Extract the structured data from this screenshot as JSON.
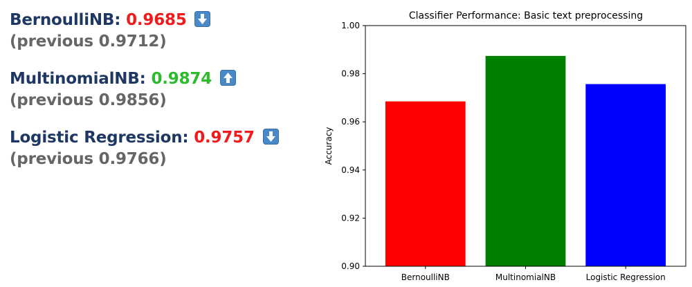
{
  "results": [
    {
      "name": "BernoulliNB",
      "value": "0.9685",
      "direction": "down",
      "previous": "(previous 0.9712)"
    },
    {
      "name": "MultinomialNB",
      "value": "0.9874",
      "direction": "up",
      "previous": "(previous 0.9856)"
    },
    {
      "name": "Logistic Regression",
      "value": "0.9757",
      "direction": "down",
      "previous": "(previous 0.9766)"
    }
  ],
  "icons": {
    "down": "down-arrow-button-icon",
    "up": "up-arrow-button-icon"
  },
  "colors": {
    "name": "#1f3863",
    "decrease": "#ee1c1c",
    "increase": "#2dbb2d",
    "previous": "#666666"
  },
  "chart_data": {
    "type": "bar",
    "title": "Classifier Performance: Basic text preprocessing",
    "xlabel": "",
    "ylabel": "Accuracy",
    "categories": [
      "BernoulliNB",
      "MultinomialNB",
      "Logistic Regression"
    ],
    "values": [
      0.9685,
      0.9874,
      0.9757
    ],
    "bar_colors": [
      "#ff0000",
      "#008000",
      "#0000ff"
    ],
    "ylim": [
      0.9,
      1.0
    ],
    "yticks": [
      0.9,
      0.92,
      0.94,
      0.96,
      0.98,
      1.0
    ],
    "ytick_labels": [
      "0.90",
      "0.92",
      "0.94",
      "0.96",
      "0.98",
      "1.00"
    ],
    "grid": false,
    "legend": false
  }
}
